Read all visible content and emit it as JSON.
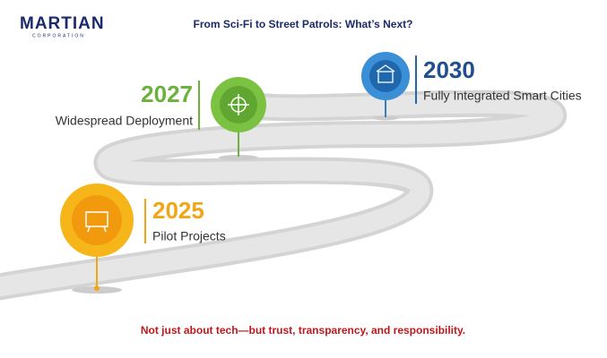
{
  "header": {
    "logo": "MARTIAN",
    "logo_sub": "CORPORATION",
    "title": "From Sci-Fi to Street Patrols: What’s Next?"
  },
  "milestones": [
    {
      "year": "2025",
      "label": "Pilot Projects"
    },
    {
      "year": "2027",
      "label": "Widespread Deployment"
    },
    {
      "year": "2030",
      "label": "Fully Integrated Smart Cities"
    }
  ],
  "footer": "Not just about tech—but trust, transparency, and responsibility."
}
